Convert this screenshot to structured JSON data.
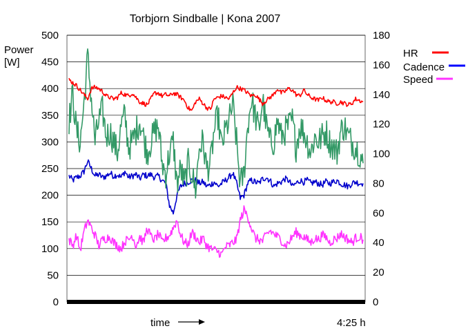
{
  "chart_data": {
    "type": "line",
    "title": "Torbjorn Sindballe | Kona 2007",
    "ylabel_left": [
      "Power",
      "[W]"
    ],
    "ylim_left": [
      0,
      500
    ],
    "left_ticks": [
      "0",
      "50",
      "100",
      "150",
      "200",
      "250",
      "300",
      "350",
      "400",
      "450",
      "500"
    ],
    "ylim_right": [
      0,
      180
    ],
    "right_ticks": [
      "0",
      "20",
      "40",
      "60",
      "80",
      "100",
      "120",
      "140",
      "160",
      "180"
    ],
    "xlabel": "time",
    "x_end_label": "4:25 h",
    "legend": [
      {
        "name": "HR",
        "color": "#ff0000"
      },
      {
        "name": "Cadence",
        "color": "#0000ff"
      },
      {
        "name": "Speed",
        "color": "#ff33ff"
      }
    ],
    "series": [
      {
        "name": "HR",
        "axis": "right",
        "color": "#ff0000",
        "values": [
          150,
          148,
          146,
          143,
          140,
          137,
          144,
          145,
          144,
          142,
          139,
          138,
          137,
          138,
          141,
          140,
          139,
          141,
          138,
          135,
          134,
          133,
          137,
          141,
          141,
          139,
          140,
          139,
          141,
          140,
          138,
          136,
          131,
          129,
          135,
          137,
          134,
          131,
          130,
          137,
          138,
          139,
          138,
          137,
          141,
          145,
          144,
          143,
          141,
          139,
          140,
          137,
          134,
          136,
          138,
          140,
          144,
          141,
          142,
          144,
          143,
          140,
          139,
          143,
          140,
          138,
          137,
          136,
          138,
          136,
          135,
          135,
          134,
          135,
          134,
          133,
          134,
          137,
          136,
          135
        ]
      },
      {
        "name": "Cadence",
        "axis": "right",
        "color": "#0000cc",
        "values": [
          85,
          82,
          84,
          85,
          88,
          95,
          90,
          85,
          86,
          84,
          85,
          87,
          85,
          86,
          84,
          88,
          84,
          85,
          86,
          83,
          86,
          85,
          86,
          84,
          85,
          82,
          80,
          65,
          60,
          72,
          78,
          80,
          81,
          82,
          82,
          80,
          81,
          78,
          79,
          81,
          78,
          80,
          82,
          84,
          87,
          80,
          70,
          72,
          80,
          82,
          81,
          80,
          83,
          84,
          82,
          78,
          80,
          81,
          83,
          82,
          78,
          80,
          82,
          81,
          82,
          80,
          81,
          80,
          79,
          81,
          80,
          81,
          82,
          80,
          79,
          78,
          80,
          81,
          80,
          80
        ]
      },
      {
        "name": "Power",
        "axis": "left",
        "color": "#339966",
        "values": [
          340,
          390,
          320,
          300,
          370,
          460,
          380,
          300,
          340,
          360,
          310,
          320,
          300,
          280,
          330,
          350,
          290,
          300,
          320,
          340,
          310,
          280,
          300,
          320,
          330,
          260,
          240,
          280,
          300,
          220,
          250,
          220,
          260,
          240,
          210,
          290,
          300,
          250,
          260,
          320,
          350,
          290,
          320,
          340,
          370,
          300,
          220,
          240,
          330,
          380,
          350,
          320,
          380,
          330,
          300,
          300,
          340,
          310,
          320,
          330,
          340,
          290,
          330,
          320,
          300,
          280,
          310,
          300,
          310,
          320,
          300,
          290,
          280,
          320,
          330,
          310,
          300,
          290,
          280,
          260
        ]
      },
      {
        "name": "Speed",
        "axis": "right",
        "color": "#ff33ff",
        "values": [
          42,
          38,
          45,
          35,
          47,
          55,
          50,
          45,
          38,
          42,
          43,
          44,
          40,
          38,
          36,
          41,
          42,
          45,
          38,
          44,
          40,
          50,
          44,
          42,
          46,
          40,
          43,
          45,
          50,
          55,
          45,
          40,
          39,
          47,
          44,
          40,
          43,
          38,
          36,
          35,
          34,
          32,
          37,
          38,
          40,
          42,
          55,
          62,
          58,
          50,
          43,
          42,
          41,
          45,
          48,
          46,
          44,
          42,
          38,
          40,
          44,
          47,
          45,
          44,
          42,
          40,
          43,
          42,
          45,
          44,
          40,
          42,
          43,
          46,
          44,
          42,
          40,
          43,
          44,
          42
        ]
      }
    ]
  }
}
